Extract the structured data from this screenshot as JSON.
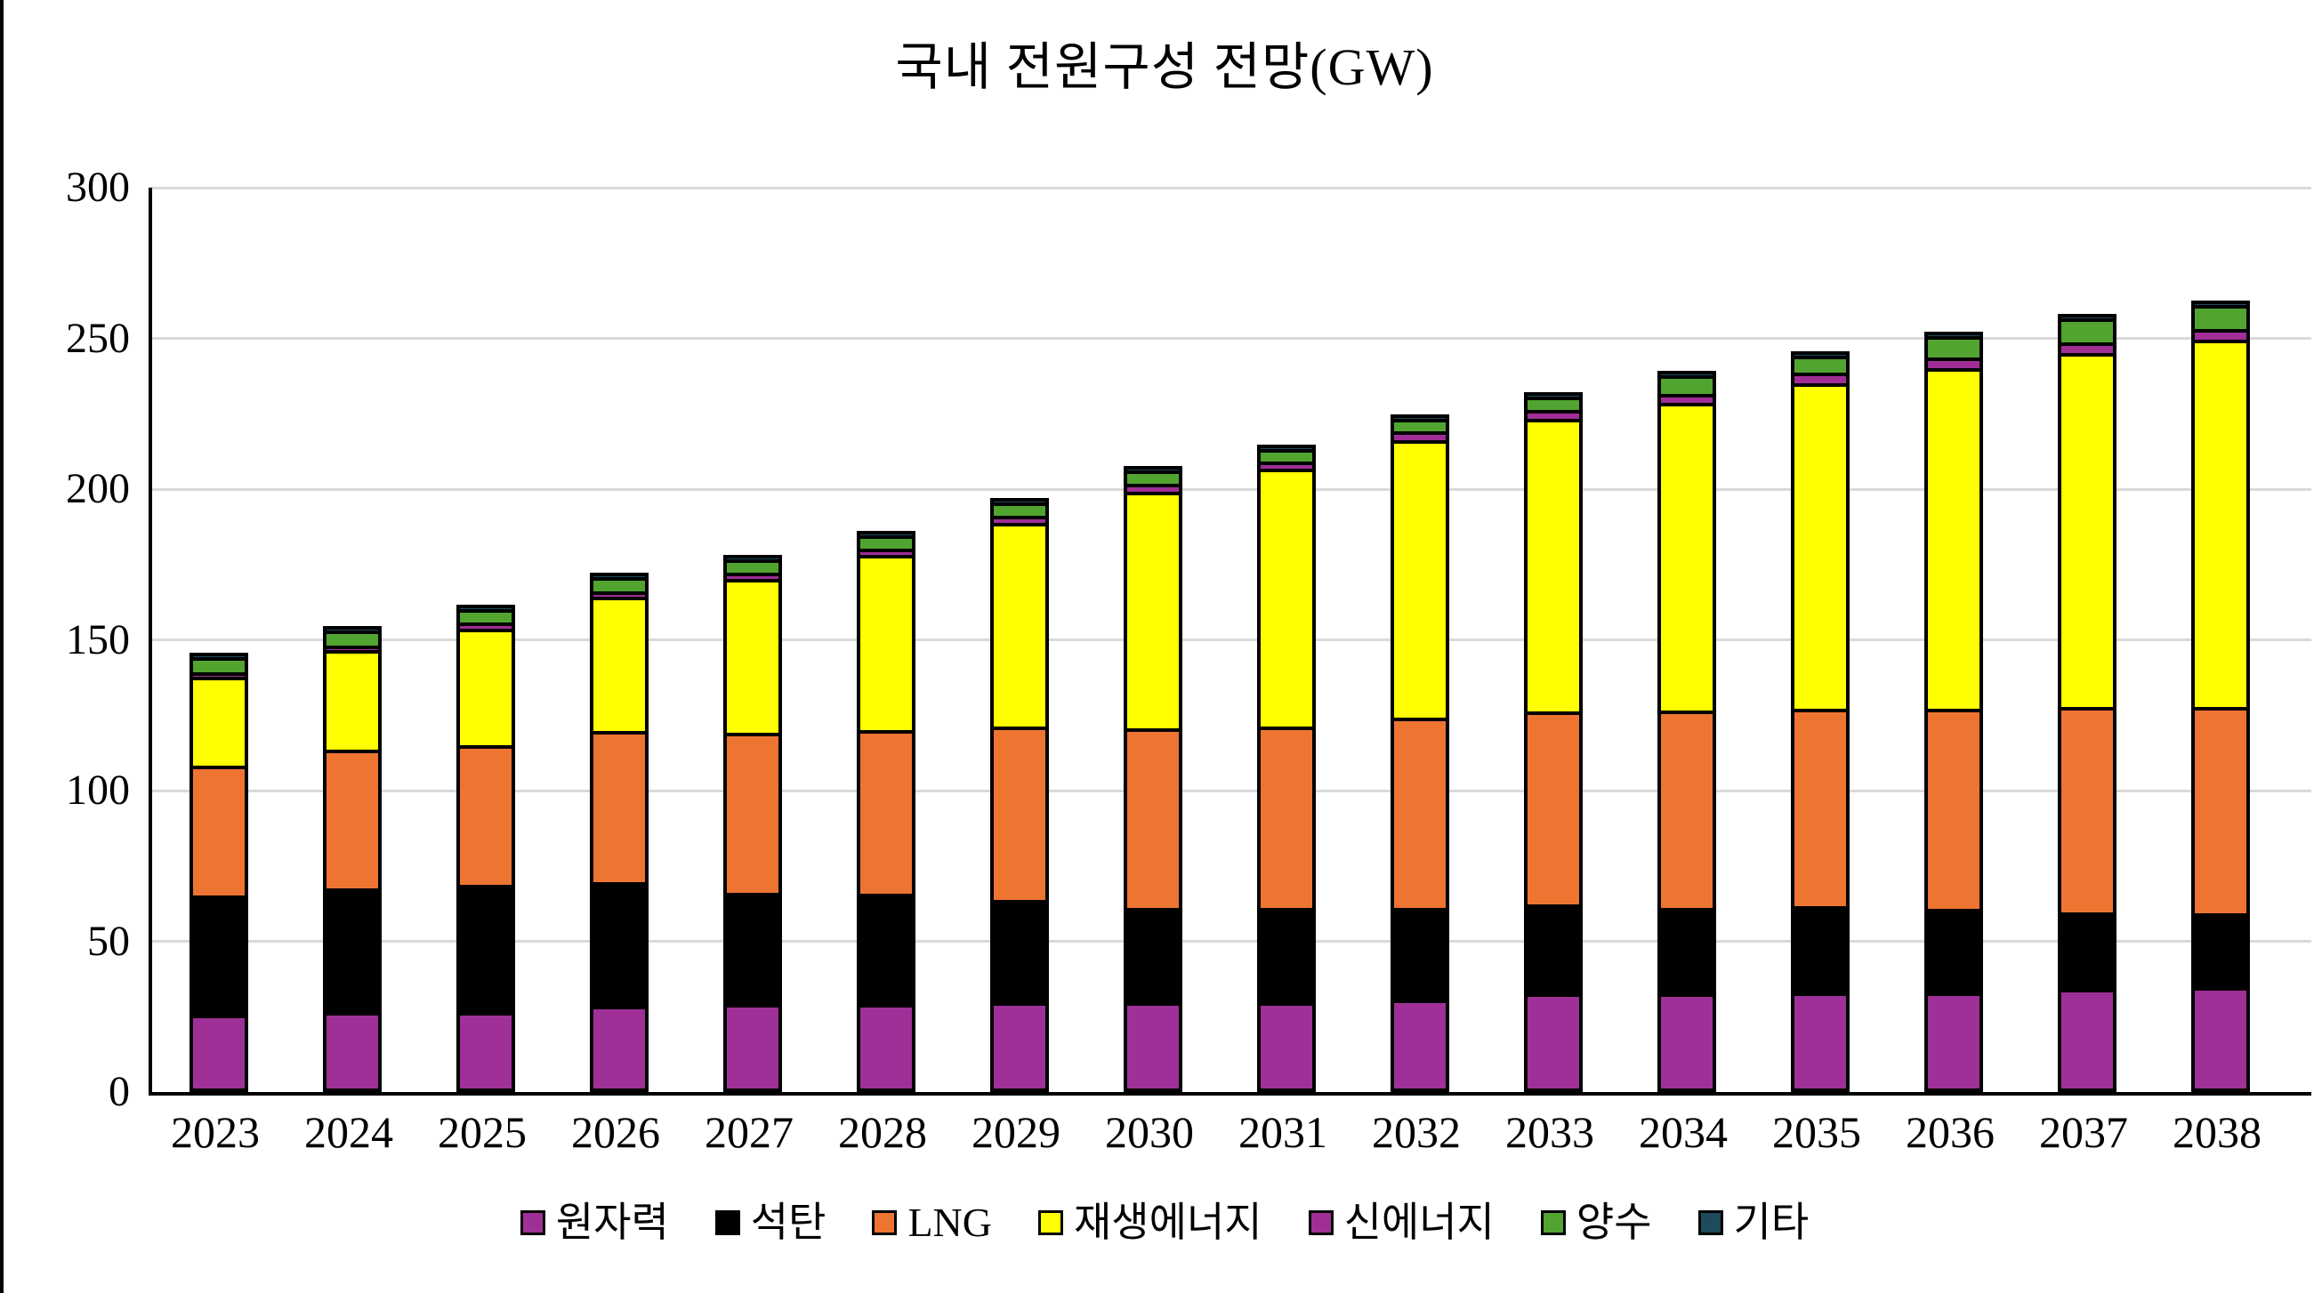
{
  "title": "국내 전원구성 전망(GW)",
  "chart_data": {
    "type": "bar",
    "stacked": true,
    "title": "국내 전원구성 전망(GW)",
    "unit": "GW",
    "xlabel": "",
    "ylabel": "",
    "ylim": [
      0,
      300
    ],
    "y_ticks": [
      0,
      50,
      100,
      150,
      200,
      250,
      300
    ],
    "grid": "horizontal",
    "gridline_color": "#D9D9D9",
    "legend_position": "bottom",
    "categories": [
      "2023",
      "2024",
      "2025",
      "2026",
      "2027",
      "2028",
      "2029",
      "2030",
      "2031",
      "2032",
      "2033",
      "2034",
      "2035",
      "2036",
      "2037",
      "2038"
    ],
    "series": [
      {
        "key": "nuclear",
        "name": "원자력",
        "color": "#9E3097",
        "values": [
          24.5,
          25.5,
          25.5,
          27.5,
          28.0,
          28.0,
          28.5,
          28.5,
          28.5,
          29.5,
          31.5,
          31.5,
          32.0,
          32.0,
          33.0,
          33.5
        ]
      },
      {
        "key": "coal",
        "name": "석탄",
        "color": "#000000",
        "values": [
          39.5,
          41.0,
          42.0,
          41.0,
          37.0,
          36.5,
          34.0,
          31.5,
          31.5,
          30.5,
          29.5,
          28.5,
          28.5,
          27.5,
          25.5,
          24.5
        ]
      },
      {
        "key": "lng",
        "name": "LNG",
        "color": "#ED7431",
        "values": [
          43.0,
          46.0,
          46.5,
          50.0,
          53.0,
          54.5,
          57.5,
          59.5,
          60.0,
          63.0,
          64.0,
          65.5,
          65.5,
          66.5,
          68.0,
          68.5
        ]
      },
      {
        "key": "renewable",
        "name": "재생에너지",
        "color": "#FFFF00",
        "values": [
          29.5,
          33.0,
          38.5,
          44.5,
          51.0,
          58.0,
          67.5,
          78.5,
          85.5,
          92.0,
          97.0,
          102.0,
          108.0,
          113.0,
          117.5,
          122.0
        ]
      },
      {
        "key": "new-energy",
        "name": "신에너지",
        "color": "#A02E95",
        "values": [
          1.5,
          1.5,
          2.0,
          2.0,
          2.0,
          2.0,
          2.5,
          2.5,
          2.5,
          3.0,
          3.0,
          3.0,
          3.5,
          3.5,
          3.5,
          3.5
        ]
      },
      {
        "key": "pumped-hydro",
        "name": "양수",
        "color": "#52A430",
        "values": [
          5.0,
          5.0,
          4.5,
          4.5,
          4.5,
          4.5,
          4.5,
          4.5,
          4.0,
          4.0,
          4.5,
          6.0,
          5.5,
          7.0,
          8.0,
          8.0
        ]
      },
      {
        "key": "other",
        "name": "기타",
        "color": "#1E4A5C",
        "values": [
          1.5,
          1.5,
          1.5,
          1.5,
          1.5,
          1.5,
          1.5,
          1.5,
          1.5,
          1.5,
          1.5,
          1.5,
          1.5,
          1.5,
          1.5,
          1.5
        ]
      }
    ]
  }
}
